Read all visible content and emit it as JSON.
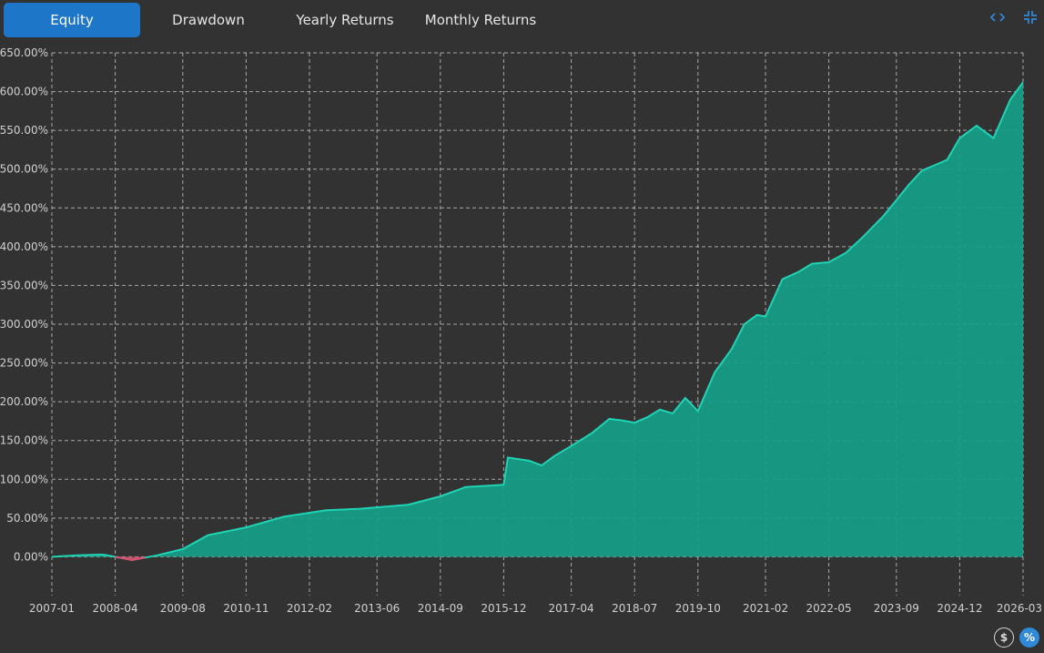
{
  "tabs": [
    {
      "label": "Equity",
      "active": true
    },
    {
      "label": "Drawdown",
      "active": false
    },
    {
      "label": "Yearly Returns",
      "active": false
    },
    {
      "label": "Monthly Returns",
      "active": false
    }
  ],
  "top_icons": {
    "expand": "code-brackets-icon",
    "collapse": "collapse-icon"
  },
  "toggles": {
    "dollar": {
      "glyph": "$",
      "icon": "dollar-icon",
      "active": false
    },
    "percent": {
      "glyph": "%",
      "icon": "percent-icon",
      "active": true
    }
  },
  "colors": {
    "background": "#323232",
    "grid": "#cfcfcf",
    "fill": "#15a088",
    "line": "#1fd3b5",
    "negative": "#e0506e",
    "tab_active": "#1e76c8",
    "tick": "#d0d0d0"
  },
  "chart_data": {
    "type": "area",
    "y_unit": "%",
    "ylim": [
      -50,
      650
    ],
    "y_ticks": [
      "650.00%",
      "600.00%",
      "550.00%",
      "500.00%",
      "450.00%",
      "400.00%",
      "350.00%",
      "300.00%",
      "250.00%",
      "200.00%",
      "150.00%",
      "100.00%",
      "50.00%",
      "0.00%"
    ],
    "y_tick_values": [
      650,
      600,
      550,
      500,
      450,
      400,
      350,
      300,
      250,
      200,
      150,
      100,
      50,
      0
    ],
    "x_ticks": [
      "2007-01",
      "2008-04",
      "2009-08",
      "2010-11",
      "2012-02",
      "2013-06",
      "2014-09",
      "2015-12",
      "2017-04",
      "2018-07",
      "2019-10",
      "2021-02",
      "2022-05",
      "2023-09",
      "2024-12",
      "2026-03"
    ],
    "grid": true,
    "series": [
      {
        "x": [
          "2007-01",
          "2007-07",
          "2008-01",
          "2008-04",
          "2008-08",
          "2008-11",
          "2009-02",
          "2009-08",
          "2010-02",
          "2010-11",
          "2011-08",
          "2012-06",
          "2013-02",
          "2014-01",
          "2014-02",
          "2014-09",
          "2015-03",
          "2015-09",
          "2015-12",
          "2016-01",
          "2016-06",
          "2016-09",
          "2016-12",
          "2017-04",
          "2017-09",
          "2018-01",
          "2018-04",
          "2018-07",
          "2018-10",
          "2019-01",
          "2019-04",
          "2019-07",
          "2019-10",
          "2020-02",
          "2020-06",
          "2020-09",
          "2020-12",
          "2021-02",
          "2021-06",
          "2021-10",
          "2022-01",
          "2022-05",
          "2022-09",
          "2023-01",
          "2023-06",
          "2023-09",
          "2023-12",
          "2024-03",
          "2024-06",
          "2024-09",
          "2024-12",
          "2025-04",
          "2025-08",
          "2025-12",
          "2026-03"
        ],
        "y": [
          0,
          2,
          3,
          0,
          -4,
          -1,
          2,
          10,
          28,
          38,
          52,
          60,
          62,
          67,
          68,
          78,
          90,
          92,
          93,
          128,
          124,
          118,
          130,
          143,
          160,
          178,
          176,
          173,
          180,
          190,
          185,
          205,
          188,
          238,
          268,
          300,
          312,
          310,
          358,
          368,
          378,
          380,
          392,
          412,
          440,
          460,
          480,
          498,
          505,
          512,
          540,
          556,
          540,
          590,
          612
        ]
      }
    ]
  }
}
